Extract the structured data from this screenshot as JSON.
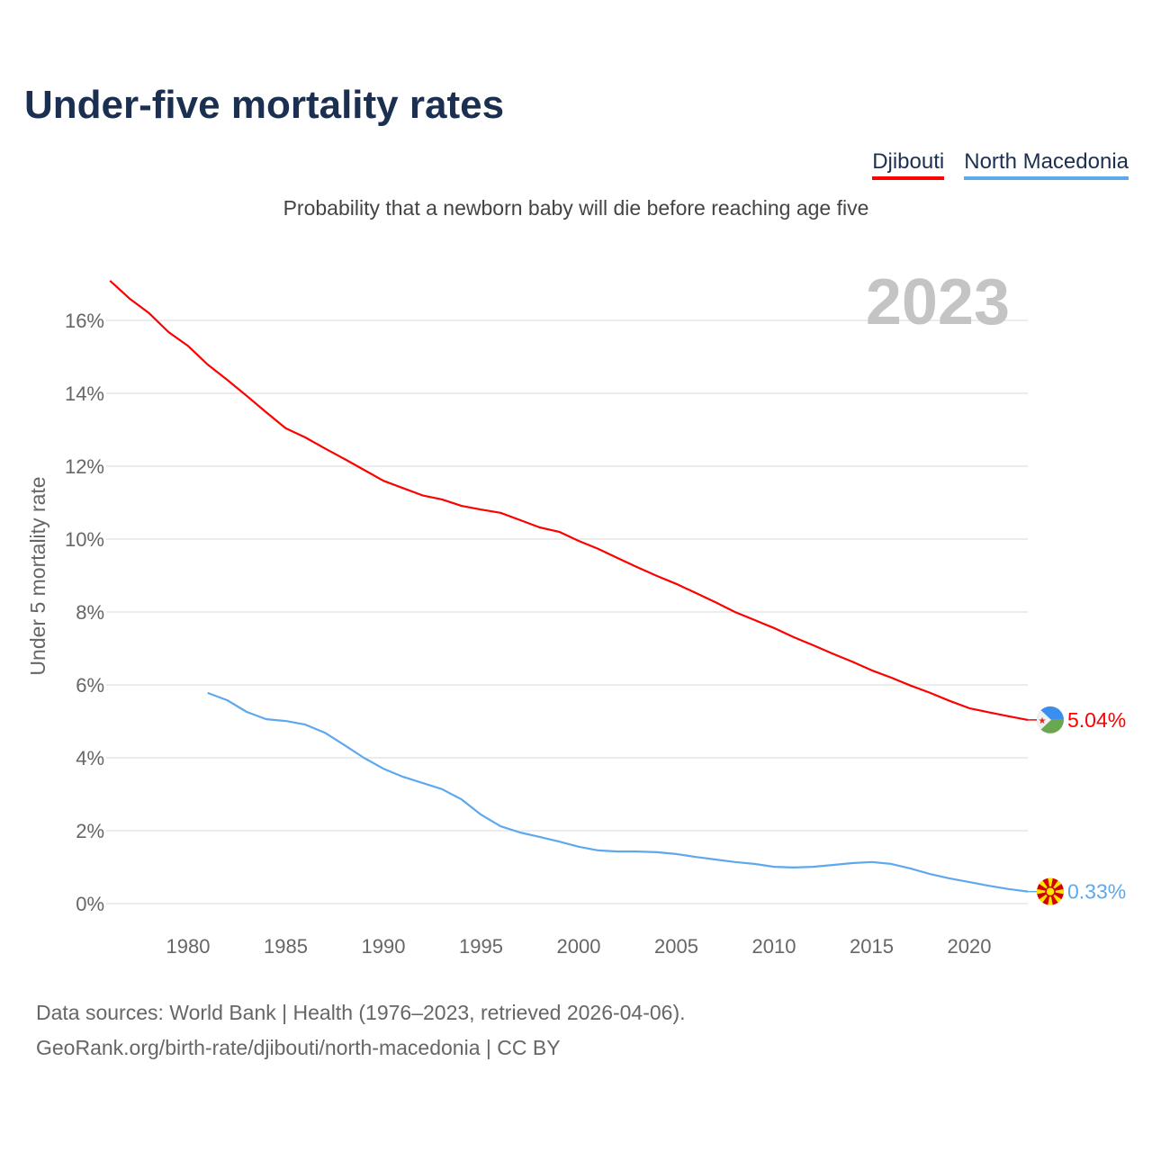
{
  "title": "Under-five mortality rates",
  "subtitle": "Probability that a newborn baby will die before reaching age five",
  "footer": {
    "line1": "Data sources: World Bank | Health (1976–2023, retrieved 2026-04-06).",
    "line2": "GeoRank.org/birth-rate/djibouti/north-macedonia | CC BY"
  },
  "chart_data": {
    "type": "line",
    "title": "Under-five mortality rates",
    "ylabel": "Under 5 mortality rate",
    "xlabel": "",
    "year_label": "2023",
    "xlim": [
      1976,
      2023
    ],
    "ylim": [
      0,
      17
    ],
    "grid": true,
    "legend": "top-right",
    "xticks": [
      1980,
      1985,
      1990,
      1995,
      2000,
      2005,
      2010,
      2015,
      2020
    ],
    "yticks": [
      0,
      2,
      4,
      6,
      8,
      10,
      12,
      14,
      16
    ],
    "ytick_labels": [
      "0%",
      "2%",
      "4%",
      "6%",
      "8%",
      "10%",
      "12%",
      "14%",
      "16%"
    ],
    "series": [
      {
        "name": "Djibouti",
        "color": "#ff0000",
        "end_label": "5.04%",
        "flag": "djibouti-flag",
        "x_start": 1976,
        "values": [
          17.09,
          16.6,
          16.2,
          15.68,
          15.3,
          14.79,
          14.37,
          13.93,
          13.48,
          13.04,
          12.79,
          12.49,
          12.2,
          11.9,
          11.6,
          11.4,
          11.2,
          11.09,
          10.91,
          10.81,
          10.72,
          10.52,
          10.32,
          10.2,
          9.95,
          9.73,
          9.48,
          9.23,
          8.99,
          8.77,
          8.52,
          8.27,
          8.0,
          7.78,
          7.56,
          7.31,
          7.09,
          6.86,
          6.64,
          6.4,
          6.2,
          5.98,
          5.78,
          5.56,
          5.36,
          5.25,
          5.14,
          5.04
        ]
      },
      {
        "name": "North Macedonia",
        "color": "#5ea8ee",
        "end_label": "0.33%",
        "flag": "north-macedonia-flag",
        "x_start": 1981,
        "values": [
          5.78,
          5.58,
          5.26,
          5.06,
          5.01,
          4.91,
          4.69,
          4.35,
          4.0,
          3.7,
          3.48,
          3.31,
          3.14,
          2.86,
          2.44,
          2.12,
          1.95,
          1.83,
          1.7,
          1.56,
          1.46,
          1.43,
          1.43,
          1.41,
          1.36,
          1.28,
          1.21,
          1.14,
          1.09,
          1.01,
          0.99,
          1.01,
          1.06,
          1.11,
          1.14,
          1.09,
          0.96,
          0.81,
          0.69,
          0.59,
          0.49,
          0.4,
          0.33
        ]
      }
    ]
  }
}
